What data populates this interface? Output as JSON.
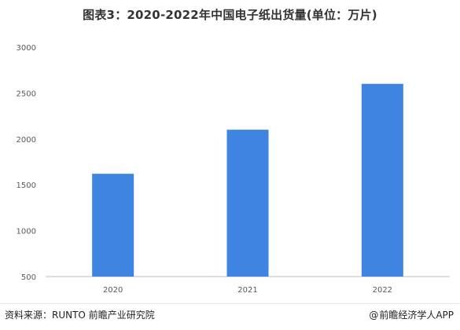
{
  "chart_data": {
    "type": "bar",
    "title": "图表3：2020-2022年中国电子纸出货量(单位：万片)",
    "categories": [
      "2020",
      "2021",
      "2022"
    ],
    "values": [
      1620,
      2100,
      2600
    ],
    "ylim": [
      500,
      3000
    ],
    "yticks": [
      500,
      1000,
      1500,
      2000,
      2500,
      3000
    ],
    "xlabel": "",
    "ylabel": "",
    "bar_color": "#3d85e0",
    "grid": false,
    "legend": "none"
  },
  "footer": {
    "source": "资料来源：RUNTO 前瞻产业研究院",
    "brand_at": "@",
    "brand": "前瞻经济学人APP"
  }
}
